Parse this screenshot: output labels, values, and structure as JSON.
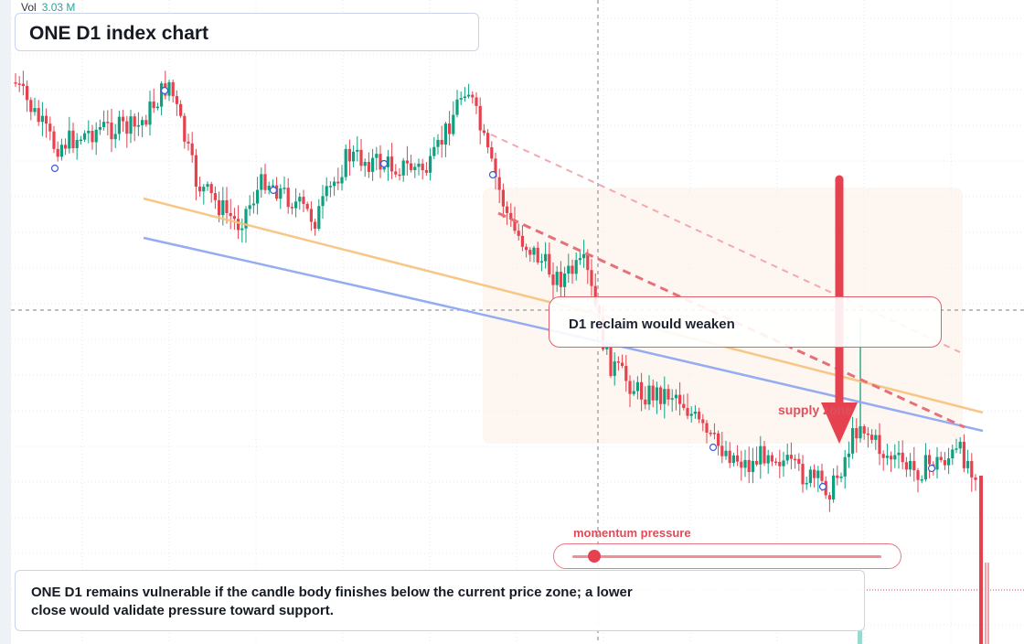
{
  "header": {
    "volume_label": "Vol",
    "volume_value": "3.03 M"
  },
  "title": "ONE D1 index chart",
  "callout": {
    "text": "D1 reclaim would weaken"
  },
  "zone_label": "supply zone",
  "momentum": {
    "label": "momentum pressure",
    "level": 0.07
  },
  "summary": {
    "text": "ONE D1 remains vulnerable if the candle body finishes below the current price zone; a lower close would validate pressure toward support."
  },
  "colors": {
    "up": "#0ea07e",
    "down": "#e5414f",
    "support": "#8ea8f0",
    "trend": "#f6c27a",
    "accent": "#e5414f"
  },
  "chart_data": {
    "type": "candlestick",
    "title": "ONE D1 index chart",
    "xlabel": "",
    "ylabel": "",
    "grid": true,
    "overlays": [
      "orange trendline",
      "blue support line",
      "red dashed downtrend lines",
      "supply zone shading",
      "downward arrow"
    ]
  }
}
